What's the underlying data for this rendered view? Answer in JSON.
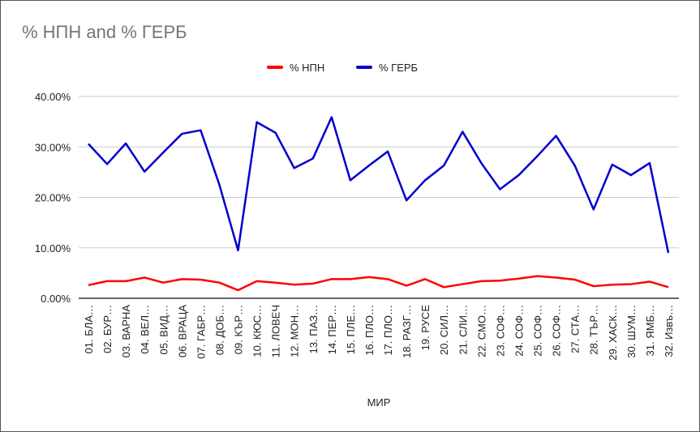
{
  "chart_data": {
    "type": "line",
    "title": "% НПН and % ГЕРБ",
    "xlabel": "МИР",
    "ylabel": "",
    "ylim": [
      0,
      0.4
    ],
    "yticks": [
      "0.00%",
      "10.00%",
      "20.00%",
      "30.00%",
      "40.00%"
    ],
    "ytick_values": [
      0,
      0.1,
      0.2,
      0.3,
      0.4
    ],
    "grid": true,
    "legend_position": "top",
    "categories": [
      "01. БЛА…",
      "02. БУР…",
      "03. ВАРНА",
      "04. ВЕЛ…",
      "05. ВИД…",
      "06. ВРАЦА",
      "07. ГАБР…",
      "08. ДОБ…",
      "09. КЪР…",
      "10. КЮС…",
      "11. ЛОВЕЧ",
      "12. МОН…",
      "13. ПАЗ…",
      "14. ПЕР…",
      "15. ПЛЕ…",
      "16. ПЛО…",
      "17. ПЛО…",
      "18. РАЗГ…",
      "19. РУСЕ",
      "20. СИЛ…",
      "21. СЛИ…",
      "22. СМО…",
      "23. СОФ…",
      "24. СОФ…",
      "25. СОФ…",
      "26. СОФ…",
      "27. СТА…",
      "28. ТЪР…",
      "29. ХАСК…",
      "30. ШУМ…",
      "31. ЯМБ…",
      "32. Извъ…"
    ],
    "series": [
      {
        "name": "% НПН",
        "color": "#ff0000",
        "values": [
          0.026,
          0.034,
          0.034,
          0.041,
          0.031,
          0.038,
          0.037,
          0.031,
          0.016,
          0.034,
          0.031,
          0.027,
          0.029,
          0.038,
          0.038,
          0.042,
          0.038,
          0.025,
          0.038,
          0.022,
          0.028,
          0.034,
          0.035,
          0.039,
          0.044,
          0.041,
          0.037,
          0.024,
          0.027,
          0.028,
          0.033,
          0.022
        ]
      },
      {
        "name": "% ГЕРБ",
        "color": "#0000cc",
        "values": [
          0.306,
          0.266,
          0.307,
          0.251,
          0.289,
          0.326,
          0.333,
          0.225,
          0.095,
          0.349,
          0.328,
          0.258,
          0.277,
          0.359,
          0.234,
          0.263,
          0.291,
          0.194,
          0.234,
          0.263,
          0.33,
          0.268,
          0.216,
          0.244,
          0.282,
          0.322,
          0.263,
          0.176,
          0.265,
          0.244,
          0.268,
          0.09
        ]
      }
    ]
  }
}
